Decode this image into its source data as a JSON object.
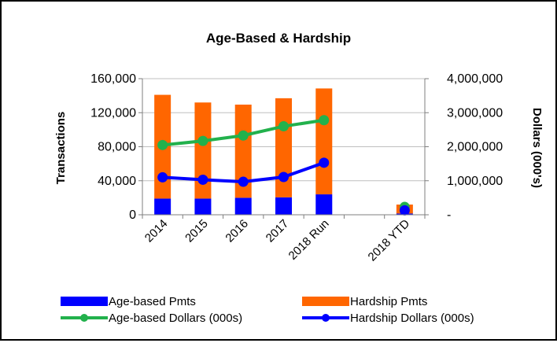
{
  "chart_data": {
    "type": "bar",
    "title": "Age-Based & Hardship",
    "categories": [
      "2014",
      "2015",
      "2016",
      "2017",
      "2018 Run",
      "",
      "2018 YTD"
    ],
    "y_left": {
      "label": "Transactions",
      "range": [
        0,
        160000
      ],
      "ticks": [
        "0",
        "40,000",
        "80,000",
        "120,000",
        "160,000"
      ]
    },
    "y_right": {
      "label": "Dollars (000's)",
      "range": [
        0,
        4000000
      ],
      "ticks": [
        "-",
        "1,000,000",
        "2,000,000",
        "3,000,000",
        "4,000,000"
      ]
    },
    "stacked": true,
    "gridlines": true,
    "legend_position": "bottom",
    "series": [
      {
        "name": "Age-based Pmts",
        "type": "bar",
        "axis": "left",
        "color": "#0000ff",
        "values": [
          19000,
          19000,
          20000,
          20500,
          24000,
          null,
          1500
        ]
      },
      {
        "name": "Hardship Pmts",
        "type": "bar",
        "axis": "left",
        "color": "#ff6600",
        "values": [
          122000,
          113000,
          109500,
          116500,
          124500,
          null,
          10500
        ]
      },
      {
        "name": "Age-based Dollars (000s)",
        "type": "line",
        "axis": "right",
        "color": "#22b14c",
        "values": [
          2050000,
          2170000,
          2330000,
          2600000,
          2780000,
          null,
          230000
        ]
      },
      {
        "name": "Hardship Dollars (000s)",
        "type": "line",
        "axis": "right",
        "color": "#0000ff",
        "values": [
          1100000,
          1030000,
          970000,
          1110000,
          1530000,
          null,
          130000
        ]
      }
    ]
  }
}
